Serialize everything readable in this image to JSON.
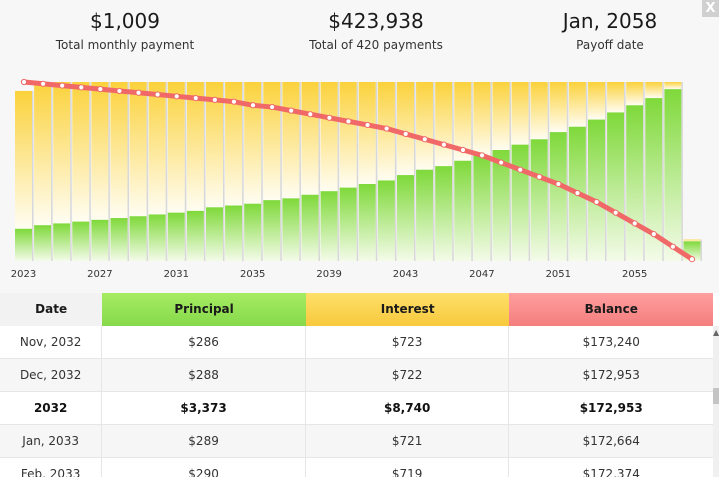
{
  "summary": [
    {
      "value": "$1,009",
      "label": "Total monthly payment"
    },
    {
      "value": "$423,938",
      "label": "Total of 420 payments"
    },
    {
      "value": "Jan, 2058",
      "label": "Payoff date"
    }
  ],
  "close_label": "X",
  "table": {
    "headers": [
      "Date",
      "Principal",
      "Interest",
      "Balance"
    ],
    "rows": [
      {
        "cells": [
          "Nov, 2032",
          "$286",
          "$723",
          "$173,240"
        ],
        "bold": false
      },
      {
        "cells": [
          "Dec, 2032",
          "$288",
          "$722",
          "$172,953"
        ],
        "bold": false
      },
      {
        "cells": [
          "2032",
          "$3,373",
          "$8,740",
          "$172,953"
        ],
        "bold": true
      },
      {
        "cells": [
          "Jan, 2033",
          "$289",
          "$721",
          "$172,664"
        ],
        "bold": false
      },
      {
        "cells": [
          "Feb, 2033",
          "$290",
          "$719",
          "$172,374"
        ],
        "bold": false
      }
    ]
  },
  "chart_data": {
    "type": "bar",
    "x_tick_labels": [
      "2023",
      "2027",
      "2031",
      "2035",
      "2039",
      "2043",
      "2047",
      "2051",
      "2055"
    ],
    "years": [
      2023,
      2024,
      2025,
      2026,
      2027,
      2028,
      2029,
      2030,
      2031,
      2032,
      2033,
      2034,
      2035,
      2036,
      2037,
      2038,
      2039,
      2040,
      2041,
      2042,
      2043,
      2044,
      2045,
      2046,
      2047,
      2048,
      2049,
      2050,
      2051,
      2052,
      2053,
      2054,
      2055,
      2056,
      2057,
      2058
    ],
    "principal_share": [
      0.18,
      0.2,
      0.21,
      0.22,
      0.23,
      0.24,
      0.25,
      0.26,
      0.27,
      0.28,
      0.3,
      0.31,
      0.32,
      0.34,
      0.35,
      0.37,
      0.39,
      0.41,
      0.43,
      0.45,
      0.48,
      0.51,
      0.53,
      0.56,
      0.59,
      0.62,
      0.65,
      0.68,
      0.72,
      0.75,
      0.79,
      0.83,
      0.87,
      0.91,
      0.96,
      0.11
    ],
    "interest_share": [
      0.77,
      0.8,
      0.79,
      0.78,
      0.77,
      0.76,
      0.75,
      0.74,
      0.73,
      0.72,
      0.7,
      0.69,
      0.68,
      0.66,
      0.65,
      0.63,
      0.61,
      0.59,
      0.57,
      0.55,
      0.52,
      0.49,
      0.47,
      0.44,
      0.41,
      0.38,
      0.35,
      0.32,
      0.28,
      0.25,
      0.21,
      0.17,
      0.13,
      0.09,
      0.04,
      0.01
    ],
    "balance_share": [
      1.0,
      0.99,
      0.98,
      0.97,
      0.96,
      0.95,
      0.94,
      0.93,
      0.92,
      0.91,
      0.9,
      0.89,
      0.87,
      0.86,
      0.84,
      0.82,
      0.8,
      0.78,
      0.76,
      0.74,
      0.71,
      0.68,
      0.65,
      0.62,
      0.59,
      0.55,
      0.51,
      0.47,
      0.43,
      0.38,
      0.33,
      0.27,
      0.21,
      0.15,
      0.08,
      0.01
    ],
    "colors": {
      "principal": "#7fd93a",
      "interest": "#fbd23c",
      "balance": "#f06868"
    }
  }
}
